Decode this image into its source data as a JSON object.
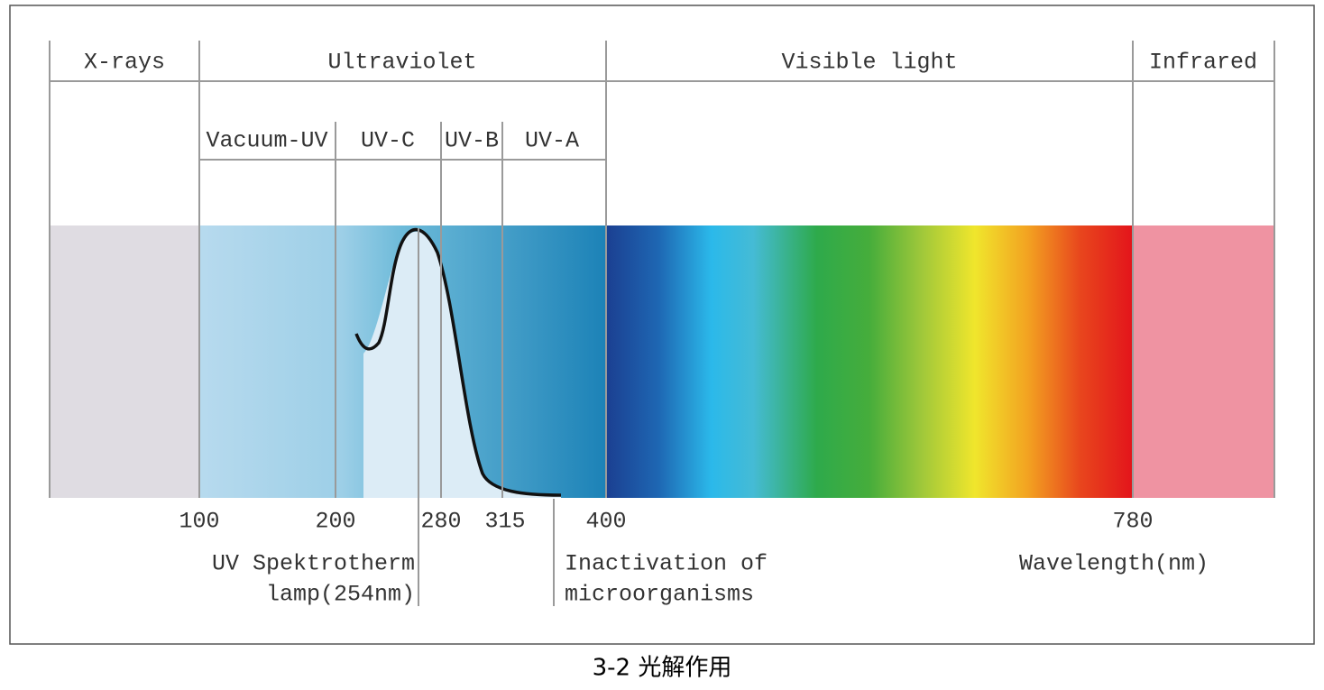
{
  "bands": [
    "X-rays",
    "Ultraviolet",
    "Visible light",
    "Infrared"
  ],
  "uv_bands": [
    "Vacuum-UV",
    "UV-C",
    "UV-B",
    "UV-A"
  ],
  "wavelengths": [
    100,
    200,
    280,
    315,
    400,
    780
  ],
  "annotations": {
    "lamp": [
      "UV Spektrotherm",
      "lamp(254nm)"
    ],
    "inactivation": [
      "Inactivation of",
      "microorganisms"
    ],
    "axis": "Wavelength(nm)"
  },
  "caption": "3-2 光解作用"
}
